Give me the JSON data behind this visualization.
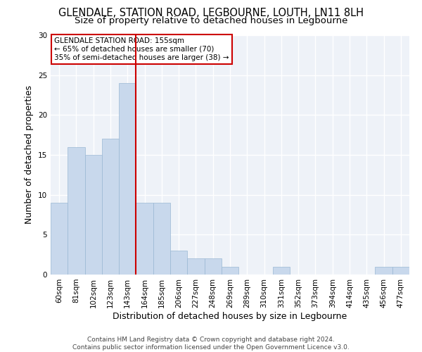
{
  "title1": "GLENDALE, STATION ROAD, LEGBOURNE, LOUTH, LN11 8LH",
  "title2": "Size of property relative to detached houses in Legbourne",
  "xlabel": "Distribution of detached houses by size in Legbourne",
  "ylabel": "Number of detached properties",
  "bar_labels": [
    "60sqm",
    "81sqm",
    "102sqm",
    "123sqm",
    "143sqm",
    "164sqm",
    "185sqm",
    "206sqm",
    "227sqm",
    "248sqm",
    "269sqm",
    "289sqm",
    "310sqm",
    "331sqm",
    "352sqm",
    "373sqm",
    "394sqm",
    "414sqm",
    "435sqm",
    "456sqm",
    "477sqm"
  ],
  "bar_values": [
    9,
    16,
    15,
    17,
    24,
    9,
    9,
    3,
    2,
    2,
    1,
    0,
    0,
    1,
    0,
    0,
    0,
    0,
    0,
    1,
    1
  ],
  "bar_color": "#c8d8ec",
  "bar_edge_color": "#9ab8d4",
  "highlight_line_color": "#cc0000",
  "annotation_box_text": "GLENDALE STATION ROAD: 155sqm\n← 65% of detached houses are smaller (70)\n35% of semi-detached houses are larger (38) →",
  "ylim": [
    0,
    30
  ],
  "yticks": [
    0,
    5,
    10,
    15,
    20,
    25,
    30
  ],
  "footnote": "Contains HM Land Registry data © Crown copyright and database right 2024.\nContains public sector information licensed under the Open Government Licence v3.0.",
  "bg_color": "#eef2f8",
  "grid_color": "#ffffff",
  "title1_fontsize": 10.5,
  "title2_fontsize": 9.5,
  "axis_label_fontsize": 9,
  "tick_fontsize": 7.5,
  "annotation_fontsize": 7.5,
  "footnote_fontsize": 6.5
}
